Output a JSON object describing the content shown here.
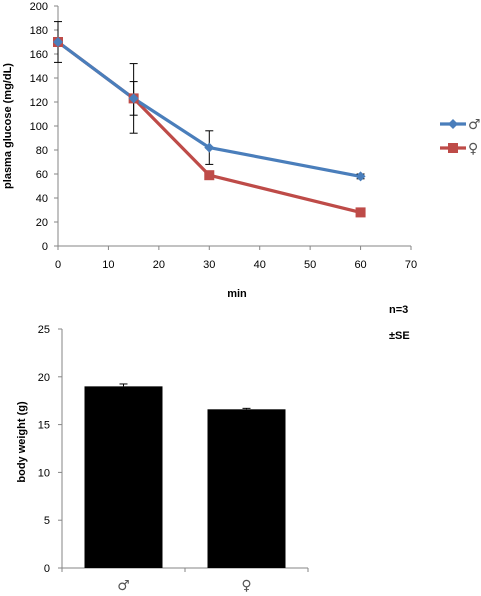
{
  "chart_data": [
    {
      "type": "line",
      "xlabel": "min",
      "ylabel": "plasma glucose (mg/dL)",
      "xlim": [
        0,
        70
      ],
      "ylim": [
        0,
        200
      ],
      "xticks": [
        0,
        10,
        20,
        30,
        40,
        50,
        60,
        70
      ],
      "yticks": [
        0,
        20,
        40,
        60,
        80,
        100,
        120,
        140,
        160,
        180,
        200
      ],
      "legend_position": "right",
      "grid": false,
      "series": [
        {
          "name": "♂",
          "color": "#4a7ebb",
          "marker": "diamond",
          "x": [
            0,
            15,
            30,
            60
          ],
          "y": [
            170,
            123,
            82,
            58
          ],
          "err": [
            17,
            14,
            14,
            2
          ]
        },
        {
          "name": "♀",
          "color": "#be4b48",
          "marker": "square",
          "x": [
            0,
            15,
            30,
            60
          ],
          "y": [
            170,
            123,
            59,
            28
          ],
          "err": [
            0,
            29,
            0,
            0
          ]
        }
      ]
    },
    {
      "type": "bar",
      "ylabel": "body weight (g)",
      "ylim": [
        0,
        25
      ],
      "yticks": [
        0,
        5,
        10,
        15,
        20,
        25
      ],
      "categories": [
        "♂",
        "♀"
      ],
      "values": [
        19.0,
        16.6
      ],
      "err": [
        0.25,
        0.1
      ],
      "color": "#000000",
      "grid": false
    }
  ],
  "annotations": {
    "n": "n=3",
    "error": "±SE"
  }
}
